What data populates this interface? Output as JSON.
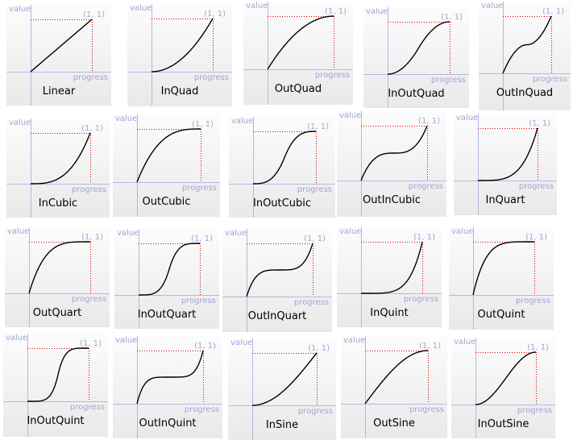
{
  "labels": {
    "value": "value",
    "progress": "progress",
    "point": "(1, 1)"
  },
  "curves": [
    {
      "name": "Linear"
    },
    {
      "name": "InQuad"
    },
    {
      "name": "OutQuad"
    },
    {
      "name": "InOutQuad"
    },
    {
      "name": "OutInQuad"
    },
    {
      "name": "InCubic"
    },
    {
      "name": "OutCubic"
    },
    {
      "name": "InOutCubic"
    },
    {
      "name": "OutInCubic"
    },
    {
      "name": "InQuart"
    },
    {
      "name": "OutQuart"
    },
    {
      "name": "InOutQuart"
    },
    {
      "name": "OutInQuart"
    },
    {
      "name": "InQuint"
    },
    {
      "name": "OutQuint"
    },
    {
      "name": "InOutQuint"
    },
    {
      "name": "OutInQuint"
    },
    {
      "name": "InSine"
    },
    {
      "name": "OutSine"
    },
    {
      "name": "InOutSine"
    }
  ]
}
